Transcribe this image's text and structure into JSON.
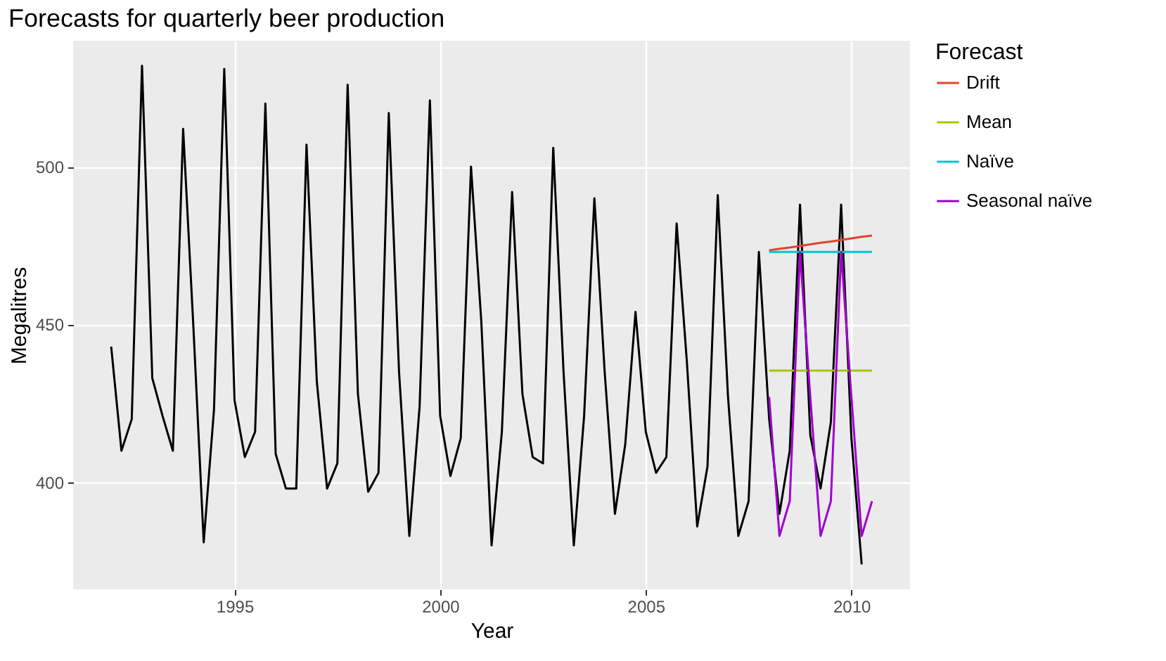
{
  "chart_data": {
    "type": "line",
    "title": "Forecasts for quarterly beer production",
    "xlabel": "Year",
    "ylabel": "Megalitres",
    "legend_title": "Forecast",
    "legend": "right",
    "grid": true,
    "x": [
      1992,
      1992.25,
      1992.5,
      1992.75,
      1993,
      1993.25,
      1993.5,
      1993.75,
      1994,
      1994.25,
      1994.5,
      1994.75,
      1995,
      1995.25,
      1995.5,
      1995.75,
      1996,
      1996.25,
      1996.5,
      1996.75,
      1997,
      1997.25,
      1997.5,
      1997.75,
      1998,
      1998.25,
      1998.5,
      1998.75,
      1999,
      1999.25,
      1999.5,
      1999.75,
      2000,
      2000.25,
      2000.5,
      2000.75,
      2001,
      2001.25,
      2001.5,
      2001.75,
      2002,
      2002.25,
      2002.5,
      2002.75,
      2003,
      2003.25,
      2003.5,
      2003.75,
      2004,
      2004.25,
      2004.5,
      2004.75,
      2005,
      2005.25,
      2005.5,
      2005.75,
      2006,
      2006.25,
      2006.5,
      2006.75,
      2007,
      2007.25,
      2007.5,
      2007.75,
      2008,
      2008.25,
      2008.5,
      2008.75,
      2009,
      2009.25,
      2009.5,
      2009.75,
      2010,
      2010.25
    ],
    "xlim": [
      1991.075,
      2011.425
    ],
    "xticks": [
      1995,
      2000,
      2005,
      2010
    ],
    "ylim": [
      366.1,
      539.9
    ],
    "yticks": [
      400,
      450,
      500
    ],
    "series": [
      {
        "color": "#000000",
        "values": [
          443,
          410,
          420,
          532,
          433,
          421,
          410,
          512,
          449,
          381,
          423,
          531,
          426,
          408,
          416,
          520,
          409,
          398,
          398,
          507,
          432,
          398,
          406,
          526,
          428,
          397,
          403,
          517,
          435,
          383,
          424,
          521,
          421,
          402,
          414,
          500,
          451,
          380,
          416,
          492,
          428,
          408,
          406,
          506,
          435,
          380,
          421,
          490,
          435,
          390,
          412,
          454,
          416,
          403,
          408,
          482,
          438,
          386,
          405,
          491,
          427,
          383,
          394,
          473,
          420,
          390,
          410,
          488,
          415,
          398,
          419,
          488,
          414,
          374
        ]
      },
      {
        "name": "Drift",
        "color": "#e0452a",
        "x": [
          2008,
          2008.25,
          2008.5,
          2008.75,
          2009,
          2009.25,
          2009.5,
          2009.75,
          2010,
          2010.25,
          2010.5
        ],
        "values": [
          473.5,
          474.0,
          474.4,
          474.9,
          475.4,
          475.9,
          476.3,
          476.8,
          477.3,
          477.8,
          478.2
        ]
      },
      {
        "name": "Mean",
        "color": "#a3c800",
        "x": [
          2008,
          2008.25,
          2008.5,
          2008.75,
          2009,
          2009.25,
          2009.5,
          2009.75,
          2010,
          2010.25,
          2010.5
        ],
        "values": [
          435.4,
          435.4,
          435.4,
          435.4,
          435.4,
          435.4,
          435.4,
          435.4,
          435.4,
          435.4,
          435.4
        ]
      },
      {
        "name": "Naïve",
        "color": "#00c8d0",
        "x": [
          2008,
          2008.25,
          2008.5,
          2008.75,
          2009,
          2009.25,
          2009.5,
          2009.75,
          2010,
          2010.25,
          2010.5
        ],
        "values": [
          473,
          473,
          473,
          473,
          473,
          473,
          473,
          473,
          473,
          473,
          473
        ]
      },
      {
        "name": "Seasonal naïve",
        "color": "#a000d0",
        "x": [
          2008,
          2008.25,
          2008.5,
          2008.75,
          2009,
          2009.25,
          2009.5,
          2009.75,
          2010,
          2010.25,
          2010.5
        ],
        "values": [
          427,
          383,
          394,
          473,
          427,
          383,
          394,
          473,
          427,
          383,
          394
        ]
      }
    ]
  }
}
